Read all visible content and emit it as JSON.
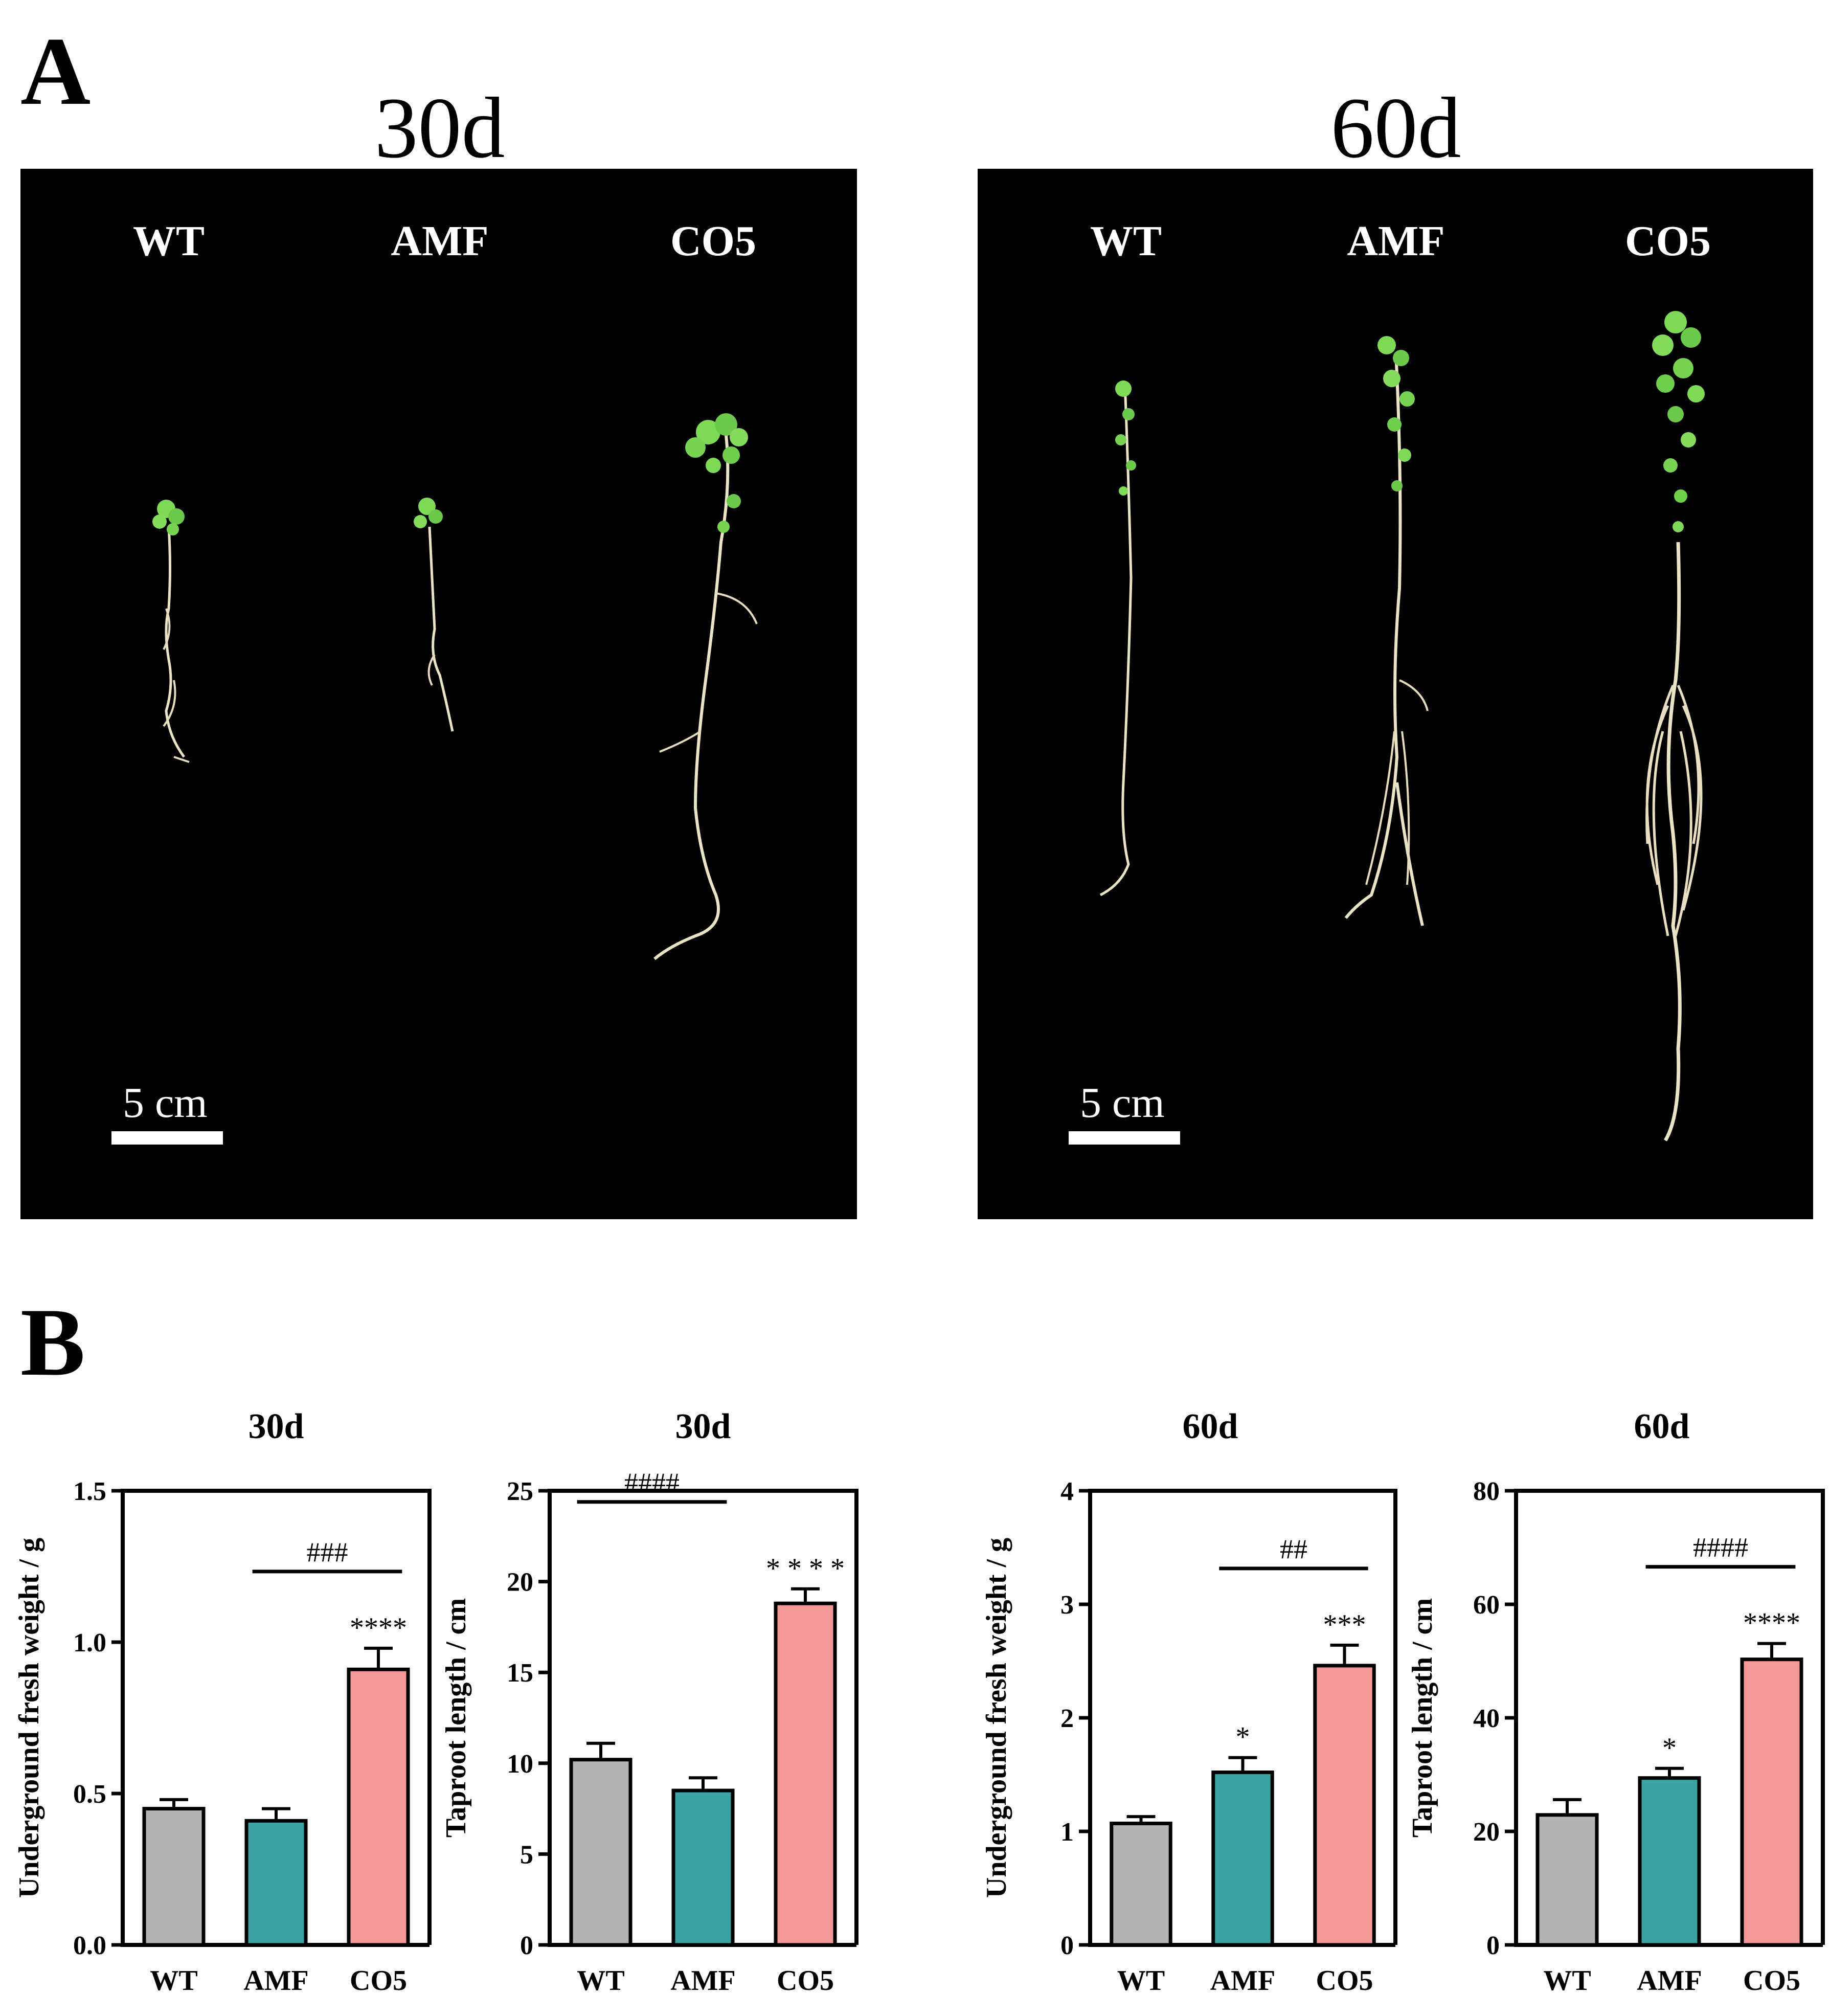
{
  "panel_a": {
    "letter": "A",
    "photos": [
      {
        "title": "30d",
        "labels": [
          "WT",
          "AMF",
          "CO5"
        ],
        "scale_label": "5 cm"
      },
      {
        "title": "60d",
        "labels": [
          "WT",
          "AMF",
          "CO5"
        ],
        "scale_label": "5 cm"
      }
    ]
  },
  "panel_b": {
    "letter": "B"
  },
  "colors": {
    "WT": "#b3b3b3",
    "AMF": "#3aa3a3",
    "CO5": "#f59898"
  },
  "chart_data": [
    {
      "type": "bar",
      "title": "30d",
      "ylabel": "Underground fresh weight / g",
      "categories": [
        "WT",
        "AMF",
        "CO5"
      ],
      "values": [
        0.45,
        0.41,
        0.91
      ],
      "errors": [
        0.03,
        0.04,
        0.07
      ],
      "ylim": [
        0,
        1.5
      ],
      "yticks": [
        "0.0",
        "0.5",
        "1.0",
        "1.5"
      ],
      "ytick_values": [
        0,
        0.5,
        1.0,
        1.5
      ],
      "stars": [
        "",
        "",
        "****"
      ],
      "comparison": {
        "label": "###",
        "from": "AMF",
        "to": "CO5"
      }
    },
    {
      "type": "bar",
      "title": "30d",
      "ylabel": "Taproot length / cm",
      "categories": [
        "WT",
        "AMF",
        "CO5"
      ],
      "values": [
        10.2,
        8.5,
        18.8
      ],
      "errors": [
        0.9,
        0.7,
        0.8
      ],
      "ylim": [
        0,
        25
      ],
      "yticks": [
        "0",
        "5",
        "10",
        "15",
        "20",
        "25"
      ],
      "ytick_values": [
        0,
        5,
        10,
        15,
        20,
        25
      ],
      "stars": [
        "",
        "",
        "* * * *"
      ],
      "comparison": {
        "label": "####",
        "from": "WT",
        "to": "AMF"
      }
    },
    {
      "type": "bar",
      "title": "60d",
      "ylabel": "Underground fresh weight / g",
      "categories": [
        "WT",
        "AMF",
        "CO5"
      ],
      "values": [
        1.07,
        1.52,
        2.46
      ],
      "errors": [
        0.06,
        0.13,
        0.18
      ],
      "ylim": [
        0,
        4
      ],
      "yticks": [
        "0",
        "1",
        "2",
        "3",
        "4"
      ],
      "ytick_values": [
        0,
        1,
        2,
        3,
        4
      ],
      "stars": [
        "",
        "*",
        "***"
      ],
      "comparison": {
        "label": "##",
        "from": "AMF",
        "to": "CO5"
      }
    },
    {
      "type": "bar",
      "title": "60d",
      "ylabel": "Taproot length / cm",
      "categories": [
        "WT",
        "AMF",
        "CO5"
      ],
      "values": [
        22.9,
        29.4,
        50.3
      ],
      "errors": [
        2.7,
        1.7,
        2.8
      ],
      "ylim": [
        0,
        80
      ],
      "yticks": [
        "0",
        "20",
        "40",
        "60",
        "80"
      ],
      "ytick_values": [
        0,
        20,
        40,
        60,
        80
      ],
      "stars": [
        "",
        "*",
        "****"
      ],
      "comparison": {
        "label": "####",
        "from": "AMF",
        "to": "CO5"
      }
    }
  ]
}
